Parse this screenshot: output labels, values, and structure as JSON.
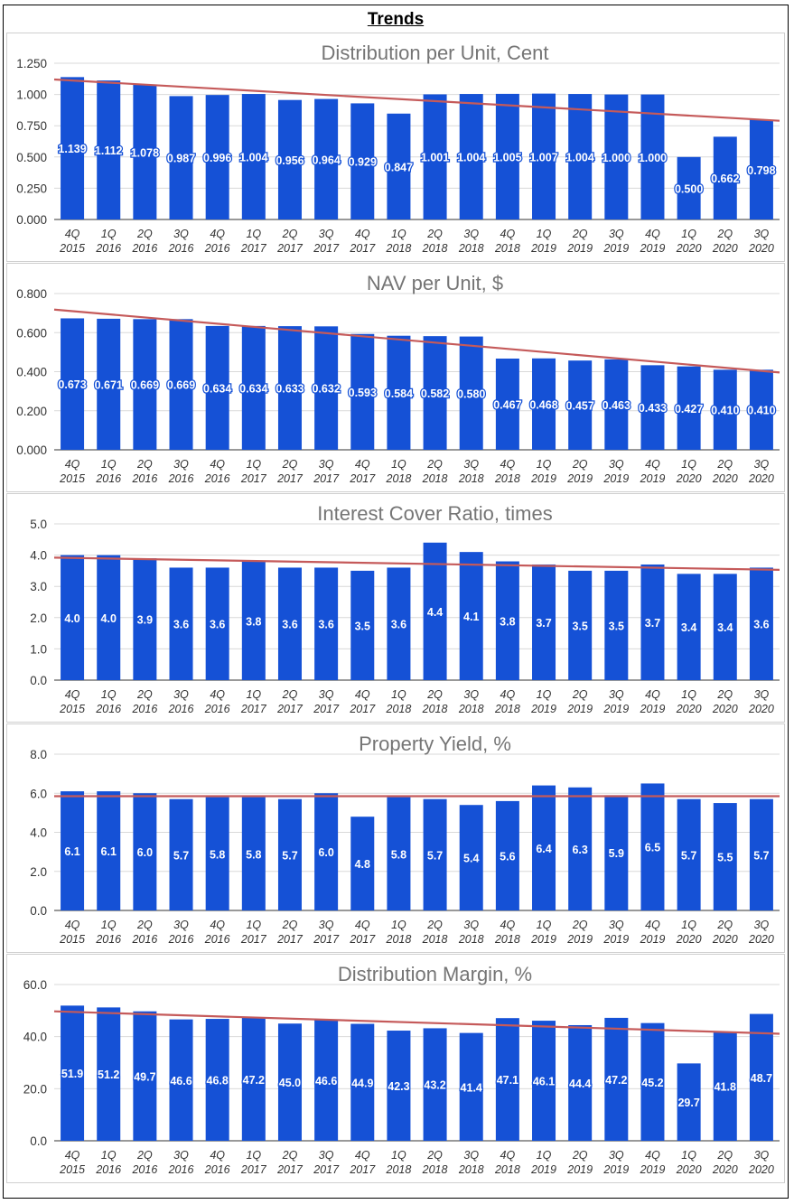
{
  "page_title": "Trends",
  "colors": {
    "bar": "#1551d6",
    "trend": "#c55a5a",
    "grid": "#d9d9d9",
    "axis": "#333333",
    "label": "#ffffff",
    "title": "#757575"
  },
  "chart_data": [
    {
      "type": "bar",
      "title": "Distribution per Unit, Cent",
      "categories": [
        [
          "4Q",
          "2015"
        ],
        [
          "1Q",
          "2016"
        ],
        [
          "2Q",
          "2016"
        ],
        [
          "3Q",
          "2016"
        ],
        [
          "4Q",
          "2016"
        ],
        [
          "1Q",
          "2017"
        ],
        [
          "2Q",
          "2017"
        ],
        [
          "3Q",
          "2017"
        ],
        [
          "4Q",
          "2017"
        ],
        [
          "1Q",
          "2018"
        ],
        [
          "2Q",
          "2018"
        ],
        [
          "3Q",
          "2018"
        ],
        [
          "4Q",
          "2018"
        ],
        [
          "1Q",
          "2019"
        ],
        [
          "2Q",
          "2019"
        ],
        [
          "3Q",
          "2019"
        ],
        [
          "4Q",
          "2019"
        ],
        [
          "1Q",
          "2020"
        ],
        [
          "2Q",
          "2020"
        ],
        [
          "3Q",
          "2020"
        ]
      ],
      "values": [
        1.139,
        1.112,
        1.078,
        0.987,
        0.996,
        1.004,
        0.956,
        0.964,
        0.929,
        0.847,
        1.001,
        1.004,
        1.005,
        1.007,
        1.004,
        1.0,
        1.0,
        0.5,
        0.662,
        0.798
      ],
      "value_labels": [
        "1.139",
        "1.112",
        "1.078",
        "0.987",
        "0.996",
        "1.004",
        "0.956",
        "0.964",
        "0.929",
        "0.847",
        "1.001",
        "1.004",
        "1.005",
        "1.007",
        "1.004",
        "1.000",
        "1.000",
        "0.500",
        "0.662",
        "0.798"
      ],
      "ylim": [
        0,
        1.25
      ],
      "yticks": [
        "0.000",
        "0.250",
        "0.500",
        "0.750",
        "1.000",
        "1.250"
      ],
      "trendline": [
        1.12,
        0.79
      ],
      "grid": true
    },
    {
      "type": "bar",
      "title": "NAV per Unit, $",
      "categories": [
        [
          "4Q",
          "2015"
        ],
        [
          "1Q",
          "2016"
        ],
        [
          "2Q",
          "2016"
        ],
        [
          "3Q",
          "2016"
        ],
        [
          "4Q",
          "2016"
        ],
        [
          "1Q",
          "2017"
        ],
        [
          "2Q",
          "2017"
        ],
        [
          "3Q",
          "2017"
        ],
        [
          "4Q",
          "2017"
        ],
        [
          "1Q",
          "2018"
        ],
        [
          "2Q",
          "2018"
        ],
        [
          "3Q",
          "2018"
        ],
        [
          "4Q",
          "2018"
        ],
        [
          "1Q",
          "2019"
        ],
        [
          "2Q",
          "2019"
        ],
        [
          "3Q",
          "2019"
        ],
        [
          "4Q",
          "2019"
        ],
        [
          "1Q",
          "2020"
        ],
        [
          "2Q",
          "2020"
        ],
        [
          "3Q",
          "2020"
        ]
      ],
      "values": [
        0.673,
        0.671,
        0.669,
        0.669,
        0.634,
        0.634,
        0.633,
        0.632,
        0.593,
        0.584,
        0.582,
        0.58,
        0.467,
        0.468,
        0.457,
        0.463,
        0.433,
        0.427,
        0.41,
        0.41
      ],
      "value_labels": [
        "0.673",
        "0.671",
        "0.669",
        "0.669",
        "0.634",
        "0.634",
        "0.633",
        "0.632",
        "0.593",
        "0.584",
        "0.582",
        "0.580",
        "0.467",
        "0.468",
        "0.457",
        "0.463",
        "0.433",
        "0.427",
        "0.410",
        "0.410"
      ],
      "ylim": [
        0,
        0.8
      ],
      "yticks": [
        "0.000",
        "0.200",
        "0.400",
        "0.600",
        "0.800"
      ],
      "trendline": [
        0.718,
        0.396
      ],
      "grid": true
    },
    {
      "type": "bar",
      "title": "Interest Cover Ratio, times",
      "categories": [
        [
          "4Q",
          "2015"
        ],
        [
          "1Q",
          "2016"
        ],
        [
          "2Q",
          "2016"
        ],
        [
          "3Q",
          "2016"
        ],
        [
          "4Q",
          "2016"
        ],
        [
          "1Q",
          "2017"
        ],
        [
          "2Q",
          "2017"
        ],
        [
          "3Q",
          "2017"
        ],
        [
          "4Q",
          "2017"
        ],
        [
          "1Q",
          "2018"
        ],
        [
          "2Q",
          "2018"
        ],
        [
          "3Q",
          "2018"
        ],
        [
          "4Q",
          "2018"
        ],
        [
          "1Q",
          "2019"
        ],
        [
          "2Q",
          "2019"
        ],
        [
          "3Q",
          "2019"
        ],
        [
          "4Q",
          "2019"
        ],
        [
          "1Q",
          "2020"
        ],
        [
          "2Q",
          "2020"
        ],
        [
          "3Q",
          "2020"
        ]
      ],
      "values": [
        4.0,
        4.0,
        3.9,
        3.6,
        3.6,
        3.8,
        3.6,
        3.6,
        3.5,
        3.6,
        4.4,
        4.1,
        3.8,
        3.7,
        3.5,
        3.5,
        3.7,
        3.4,
        3.4,
        3.6
      ],
      "value_labels": [
        "4.0",
        "4.0",
        "3.9",
        "3.6",
        "3.6",
        "3.8",
        "3.6",
        "3.6",
        "3.5",
        "3.6",
        "4.4",
        "4.1",
        "3.8",
        "3.7",
        "3.5",
        "3.5",
        "3.7",
        "3.4",
        "3.4",
        "3.6"
      ],
      "ylim": [
        0,
        5
      ],
      "yticks": [
        "0.0",
        "1.0",
        "2.0",
        "3.0",
        "4.0",
        "5.0"
      ],
      "trendline": [
        3.92,
        3.53
      ],
      "grid": true
    },
    {
      "type": "bar",
      "title": "Property Yield, %",
      "categories": [
        [
          "4Q",
          "2015"
        ],
        [
          "1Q",
          "2016"
        ],
        [
          "2Q",
          "2016"
        ],
        [
          "3Q",
          "2016"
        ],
        [
          "4Q",
          "2016"
        ],
        [
          "1Q",
          "2017"
        ],
        [
          "2Q",
          "2017"
        ],
        [
          "3Q",
          "2017"
        ],
        [
          "4Q",
          "2017"
        ],
        [
          "1Q",
          "2018"
        ],
        [
          "2Q",
          "2018"
        ],
        [
          "3Q",
          "2018"
        ],
        [
          "4Q",
          "2018"
        ],
        [
          "1Q",
          "2019"
        ],
        [
          "2Q",
          "2019"
        ],
        [
          "3Q",
          "2019"
        ],
        [
          "4Q",
          "2019"
        ],
        [
          "1Q",
          "2020"
        ],
        [
          "2Q",
          "2020"
        ],
        [
          "3Q",
          "2020"
        ]
      ],
      "values": [
        6.1,
        6.1,
        6.0,
        5.7,
        5.8,
        5.8,
        5.7,
        6.0,
        4.8,
        5.8,
        5.7,
        5.4,
        5.6,
        6.4,
        6.3,
        5.9,
        6.5,
        5.7,
        5.5,
        5.7
      ],
      "value_labels": [
        "6.1",
        "6.1",
        "6.0",
        "5.7",
        "5.8",
        "5.8",
        "5.7",
        "6.0",
        "4.8",
        "5.8",
        "5.7",
        "5.4",
        "5.6",
        "6.4",
        "6.3",
        "5.9",
        "6.5",
        "5.7",
        "5.5",
        "5.7"
      ],
      "ylim": [
        0,
        8
      ],
      "yticks": [
        "0.0",
        "2.0",
        "4.0",
        "6.0",
        "8.0"
      ],
      "trendline": [
        5.85,
        5.85
      ],
      "grid": true
    },
    {
      "type": "bar",
      "title": "Distribution Margin, %",
      "categories": [
        [
          "4Q",
          "2015"
        ],
        [
          "1Q",
          "2016"
        ],
        [
          "2Q",
          "2016"
        ],
        [
          "3Q",
          "2016"
        ],
        [
          "4Q",
          "2016"
        ],
        [
          "1Q",
          "2017"
        ],
        [
          "2Q",
          "2017"
        ],
        [
          "3Q",
          "2017"
        ],
        [
          "4Q",
          "2017"
        ],
        [
          "1Q",
          "2018"
        ],
        [
          "2Q",
          "2018"
        ],
        [
          "3Q",
          "2018"
        ],
        [
          "4Q",
          "2018"
        ],
        [
          "1Q",
          "2019"
        ],
        [
          "2Q",
          "2019"
        ],
        [
          "3Q",
          "2019"
        ],
        [
          "4Q",
          "2019"
        ],
        [
          "1Q",
          "2020"
        ],
        [
          "2Q",
          "2020"
        ],
        [
          "3Q",
          "2020"
        ]
      ],
      "values": [
        51.9,
        51.2,
        49.7,
        46.6,
        46.8,
        47.2,
        45.0,
        46.6,
        44.9,
        42.3,
        43.2,
        41.4,
        47.1,
        46.1,
        44.4,
        47.2,
        45.2,
        29.7,
        41.8,
        48.7
      ],
      "value_labels": [
        "51.9",
        "51.2",
        "49.7",
        "46.6",
        "46.8",
        "47.2",
        "45.0",
        "46.6",
        "44.9",
        "42.3",
        "43.2",
        "41.4",
        "47.1",
        "46.1",
        "44.4",
        "47.2",
        "45.2",
        "29.7",
        "41.8",
        "48.7"
      ],
      "ylim": [
        0,
        60
      ],
      "yticks": [
        "0.0",
        "20.0",
        "40.0",
        "60.0"
      ],
      "trendline": [
        49.7,
        41.1
      ],
      "grid": true
    }
  ]
}
